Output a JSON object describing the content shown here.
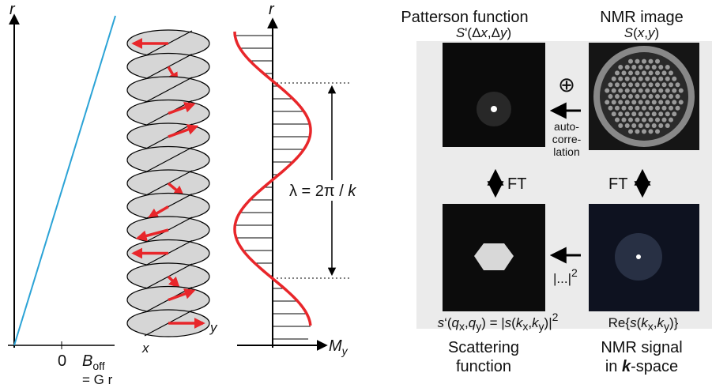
{
  "left_panel": {
    "axis_label_r": "r",
    "zero": "0",
    "b_label": [
      "B",
      "off"
    ],
    "b_eq": "= G r"
  },
  "helix": {
    "x_label": "x",
    "y_label": "y"
  },
  "profile": {
    "axis_label_r": "r",
    "m_label": [
      "M",
      "y"
    ],
    "wavelength": [
      "λ = 2π / ",
      "k"
    ]
  },
  "right_panel": {
    "patterson_title": "Patterson function",
    "nmr_title": "NMR image",
    "patterson_formula": [
      "S",
      "'(Δ",
      "x",
      ",Δ",
      "y",
      ")"
    ],
    "nmr_formula": [
      "S",
      "(",
      "x",
      ",",
      "y",
      ")"
    ],
    "oplus": "⊕",
    "autocorrelation": [
      "auto-",
      "corre-",
      "lation"
    ],
    "ft_left": "FT",
    "ft_right": "FT",
    "abs_square": [
      "|...|",
      "2"
    ],
    "scattering_formula": [
      "s",
      "‘(",
      "q",
      "x",
      ",",
      "q",
      "y",
      ") = |",
      "s",
      "(",
      "k",
      "x",
      ",",
      "k",
      "y",
      ")|",
      "2"
    ],
    "signal_formula": [
      "Re{",
      "s",
      "(",
      "k",
      "x",
      ",",
      "k",
      "y",
      ")}"
    ],
    "scattering_caption": [
      "Scattering",
      "function"
    ],
    "signal_caption": [
      "NMR signal",
      "in ",
      "k",
      "-space"
    ]
  }
}
